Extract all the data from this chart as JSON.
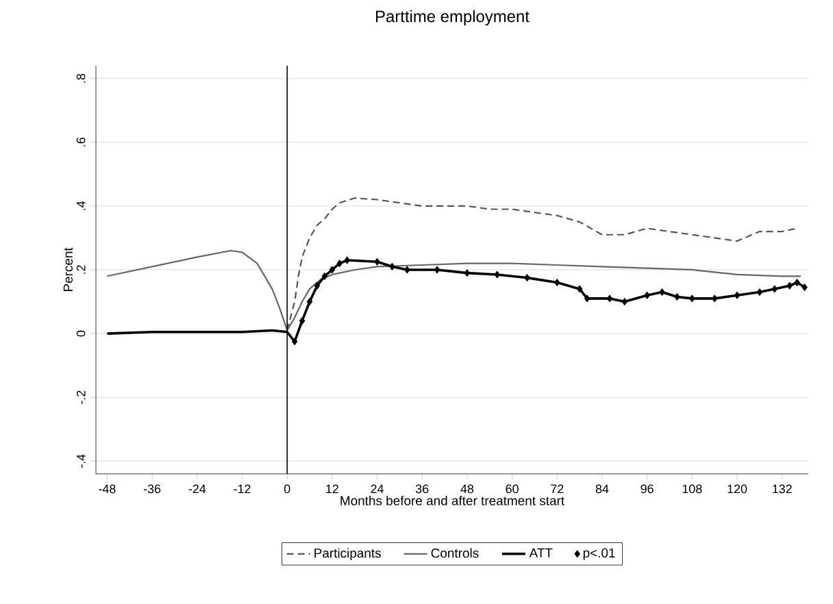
{
  "chart_data": {
    "type": "line",
    "title": "Parttime employment",
    "xlabel": "Months before and after treatment start",
    "ylabel": "Percent",
    "xlim": [
      -51,
      139
    ],
    "ylim": [
      -0.44,
      0.84
    ],
    "xticks": [
      -48,
      -36,
      -24,
      -12,
      0,
      12,
      24,
      36,
      48,
      60,
      72,
      84,
      96,
      108,
      120,
      132
    ],
    "yticks": [
      {
        "value": -0.4,
        "label": "-.4"
      },
      {
        "value": -0.2,
        "label": "-.2"
      },
      {
        "value": 0,
        "label": "0"
      },
      {
        "value": 0.2,
        "label": ".2"
      },
      {
        "value": 0.4,
        "label": ".4"
      },
      {
        "value": 0.6,
        "label": ".6"
      },
      {
        "value": 0.8,
        "label": ".8"
      }
    ],
    "grid": "y",
    "legend": "bottom",
    "ref_lines": [
      {
        "axis": "x",
        "value": 0,
        "color": "#000000"
      }
    ],
    "series": [
      {
        "name": "Participants",
        "color": "#555555",
        "line_style": "dashed",
        "marker": "none",
        "x": [
          0,
          2,
          3,
          4,
          6,
          8,
          10,
          12,
          14,
          18,
          24,
          30,
          36,
          42,
          48,
          54,
          60,
          66,
          72,
          78,
          84,
          90,
          96,
          102,
          108,
          114,
          120,
          126,
          132,
          136
        ],
        "values": [
          0.01,
          0.1,
          0.18,
          0.24,
          0.3,
          0.34,
          0.36,
          0.39,
          0.41,
          0.425,
          0.42,
          0.41,
          0.4,
          0.4,
          0.4,
          0.39,
          0.39,
          0.38,
          0.37,
          0.35,
          0.31,
          0.31,
          0.33,
          0.32,
          0.31,
          0.3,
          0.29,
          0.32,
          0.32,
          0.33
        ]
      },
      {
        "name": "Controls",
        "color": "#666666",
        "line_style": "solid",
        "marker": "none",
        "x": [
          -48,
          -36,
          -24,
          -15,
          -12,
          -8,
          -4,
          -2,
          0,
          2,
          4,
          6,
          9,
          12,
          18,
          24,
          36,
          48,
          60,
          72,
          84,
          96,
          108,
          120,
          132,
          137
        ],
        "values": [
          0.18,
          0.21,
          0.24,
          0.26,
          0.255,
          0.22,
          0.14,
          0.08,
          0.01,
          0.05,
          0.1,
          0.14,
          0.17,
          0.185,
          0.2,
          0.21,
          0.215,
          0.22,
          0.22,
          0.215,
          0.21,
          0.205,
          0.2,
          0.185,
          0.18,
          0.18
        ]
      },
      {
        "name": "ATT",
        "color": "#000000",
        "line_style": "solid",
        "marker": "none",
        "x": [
          -48,
          -36,
          -24,
          -12,
          -4,
          0,
          2,
          4,
          6,
          8,
          10,
          12,
          14,
          16,
          24,
          28,
          32,
          40,
          48,
          56,
          64,
          72,
          78,
          80,
          86,
          90,
          96,
          100,
          104,
          108,
          114,
          120,
          126,
          130,
          134,
          136,
          138
        ],
        "values": [
          0,
          0.005,
          0.005,
          0.005,
          0.01,
          0.005,
          -0.025,
          0.04,
          0.1,
          0.15,
          0.18,
          0.2,
          0.22,
          0.23,
          0.225,
          0.21,
          0.2,
          0.2,
          0.19,
          0.185,
          0.175,
          0.16,
          0.14,
          0.11,
          0.11,
          0.1,
          0.12,
          0.13,
          0.115,
          0.11,
          0.11,
          0.12,
          0.13,
          0.14,
          0.15,
          0.16,
          0.145
        ]
      },
      {
        "name": "p<.01",
        "type": "scatter",
        "color": "#000000",
        "marker": "diamond",
        "x": [
          2,
          4,
          6,
          8,
          10,
          12,
          14,
          16,
          24,
          28,
          32,
          40,
          48,
          56,
          64,
          72,
          78,
          80,
          86,
          90,
          96,
          100,
          104,
          108,
          114,
          120,
          126,
          130,
          134,
          136,
          138
        ],
        "values": [
          -0.025,
          0.04,
          0.1,
          0.15,
          0.18,
          0.2,
          0.22,
          0.23,
          0.225,
          0.21,
          0.2,
          0.2,
          0.19,
          0.185,
          0.175,
          0.16,
          0.14,
          0.11,
          0.11,
          0.1,
          0.12,
          0.13,
          0.115,
          0.11,
          0.11,
          0.12,
          0.13,
          0.14,
          0.15,
          0.16,
          0.145
        ]
      }
    ]
  }
}
